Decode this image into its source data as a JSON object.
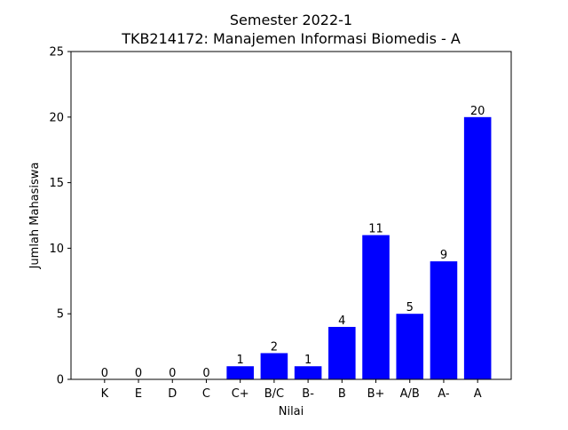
{
  "chart_data": {
    "type": "bar",
    "title": "Semester 2022-1",
    "subtitle": "TKB214172: Manajemen Informasi Biomedis - A",
    "xlabel": "Nilai",
    "ylabel": "Jumlah Mahasiswa",
    "categories": [
      "K",
      "E",
      "D",
      "C",
      "C+",
      "B/C",
      "B-",
      "B",
      "B+",
      "A/B",
      "A-",
      "A"
    ],
    "values": [
      0,
      0,
      0,
      0,
      1,
      2,
      1,
      4,
      11,
      5,
      9,
      20
    ],
    "ylim": [
      0,
      25
    ],
    "yticks": [
      0,
      5,
      10,
      15,
      20,
      25
    ],
    "bar_color": "#0000ff",
    "grid": false,
    "legend": "none"
  }
}
